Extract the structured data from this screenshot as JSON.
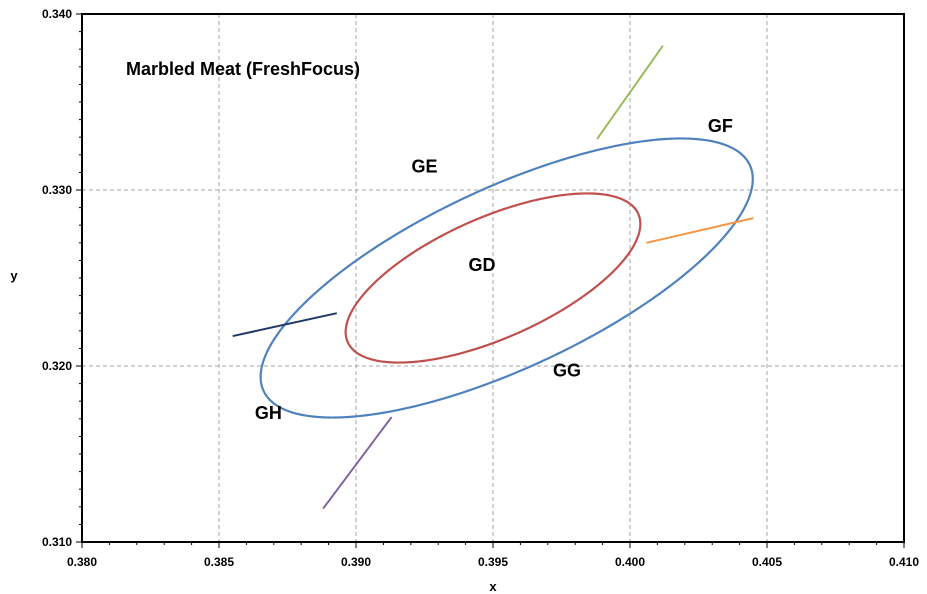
{
  "chart_data": {
    "type": "line",
    "title": "Marbled Meat (FreshFocus)",
    "xlabel": "x",
    "ylabel": "y",
    "xlim": [
      0.38,
      0.41
    ],
    "ylim": [
      0.31,
      0.34
    ],
    "xticks": [
      "0.380",
      "0.385",
      "0.390",
      "0.395",
      "0.400",
      "0.405",
      "0.410"
    ],
    "yticks": [
      "0.310",
      "0.320",
      "0.330",
      "0.340"
    ],
    "grid": true,
    "colors": {
      "outer": "#4f81bd",
      "inner": "#c0504d",
      "line_ge_gf": "#9bbb59",
      "line_gf_gg": "#f79646",
      "line_gg_gh": "#8064a2",
      "line_gh_ge": "#1f3864",
      "grid": "#a6a6a6"
    },
    "ellipses": [
      {
        "name": "outer",
        "cx": 0.3955,
        "cy": 0.325,
        "a": 0.01109,
        "b": 0.00453,
        "angle_deg": 40.0
      },
      {
        "name": "inner",
        "cx": 0.395,
        "cy": 0.325,
        "a": 0.00654,
        "b": 0.00304,
        "angle_deg": 40.0
      }
    ],
    "segments": [
      {
        "name": "GE-GF",
        "from": [
          0.3988,
          0.3329
        ],
        "to": [
          0.4012,
          0.3382
        ]
      },
      {
        "name": "GF-GG",
        "from": [
          0.4006,
          0.327
        ],
        "to": [
          0.4045,
          0.3284
        ]
      },
      {
        "name": "GG-GH",
        "from": [
          0.3913,
          0.3171
        ],
        "to": [
          0.3888,
          0.3119
        ]
      },
      {
        "name": "GH-GE",
        "from": [
          0.3893,
          0.323
        ],
        "to": [
          0.3855,
          0.3217
        ]
      }
    ],
    "regions": [
      {
        "label": "GD",
        "x": 0.3946,
        "y": 0.3254
      },
      {
        "label": "GE",
        "x": 0.3925,
        "y": 0.331
      },
      {
        "label": "GF",
        "x": 0.4033,
        "y": 0.3333
      },
      {
        "label": "GG",
        "x": 0.3977,
        "y": 0.3194
      },
      {
        "label": "GH",
        "x": 0.3868,
        "y": 0.317
      }
    ]
  }
}
